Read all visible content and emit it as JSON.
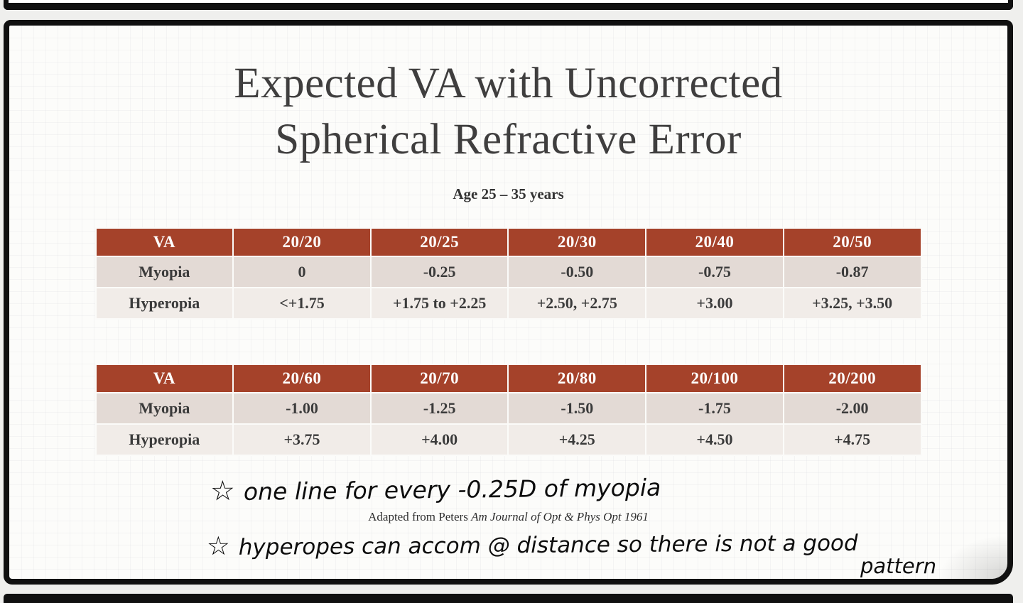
{
  "colors": {
    "accent": "#A5422A",
    "row_dark": "#E3DAD5",
    "row_light": "#F1ECE8",
    "title_text": "#3F3E3E"
  },
  "slide": {
    "title_line1": "Expected VA with Uncorrected",
    "title_line2": "Spherical Refractive Error",
    "subtitle": "Age 25 – 35 years",
    "table1": {
      "headers": [
        "VA",
        "20/20",
        "20/25",
        "20/30",
        "20/40",
        "20/50"
      ],
      "myopia": [
        "Myopia",
        "0",
        "-0.25",
        "-0.50",
        "-0.75",
        "-0.87"
      ],
      "hyperopia": [
        "Hyperopia",
        "<+1.75",
        "+1.75 to +2.25",
        "+2.50, +2.75",
        "+3.00",
        "+3.25, +3.50"
      ]
    },
    "table2": {
      "headers": [
        "VA",
        "20/60",
        "20/70",
        "20/80",
        "20/100",
        "20/200"
      ],
      "myopia": [
        "Myopia",
        "-1.00",
        "-1.25",
        "-1.50",
        "-1.75",
        "-2.00"
      ],
      "hyperopia": [
        "Hyperopia",
        "+3.75",
        "+4.00",
        "+4.25",
        "+4.50",
        "+4.75"
      ]
    },
    "citation": {
      "prefix": "Adapted from Peters ",
      "italic": "Am Journal of Opt & Phys Opt 1961"
    },
    "notes": {
      "star": "☆",
      "note1": "one line for every -0.25D of myopia",
      "note2": "hyperopes can accom @ distance so there is not a good",
      "note2_wrap": "pattern"
    }
  }
}
